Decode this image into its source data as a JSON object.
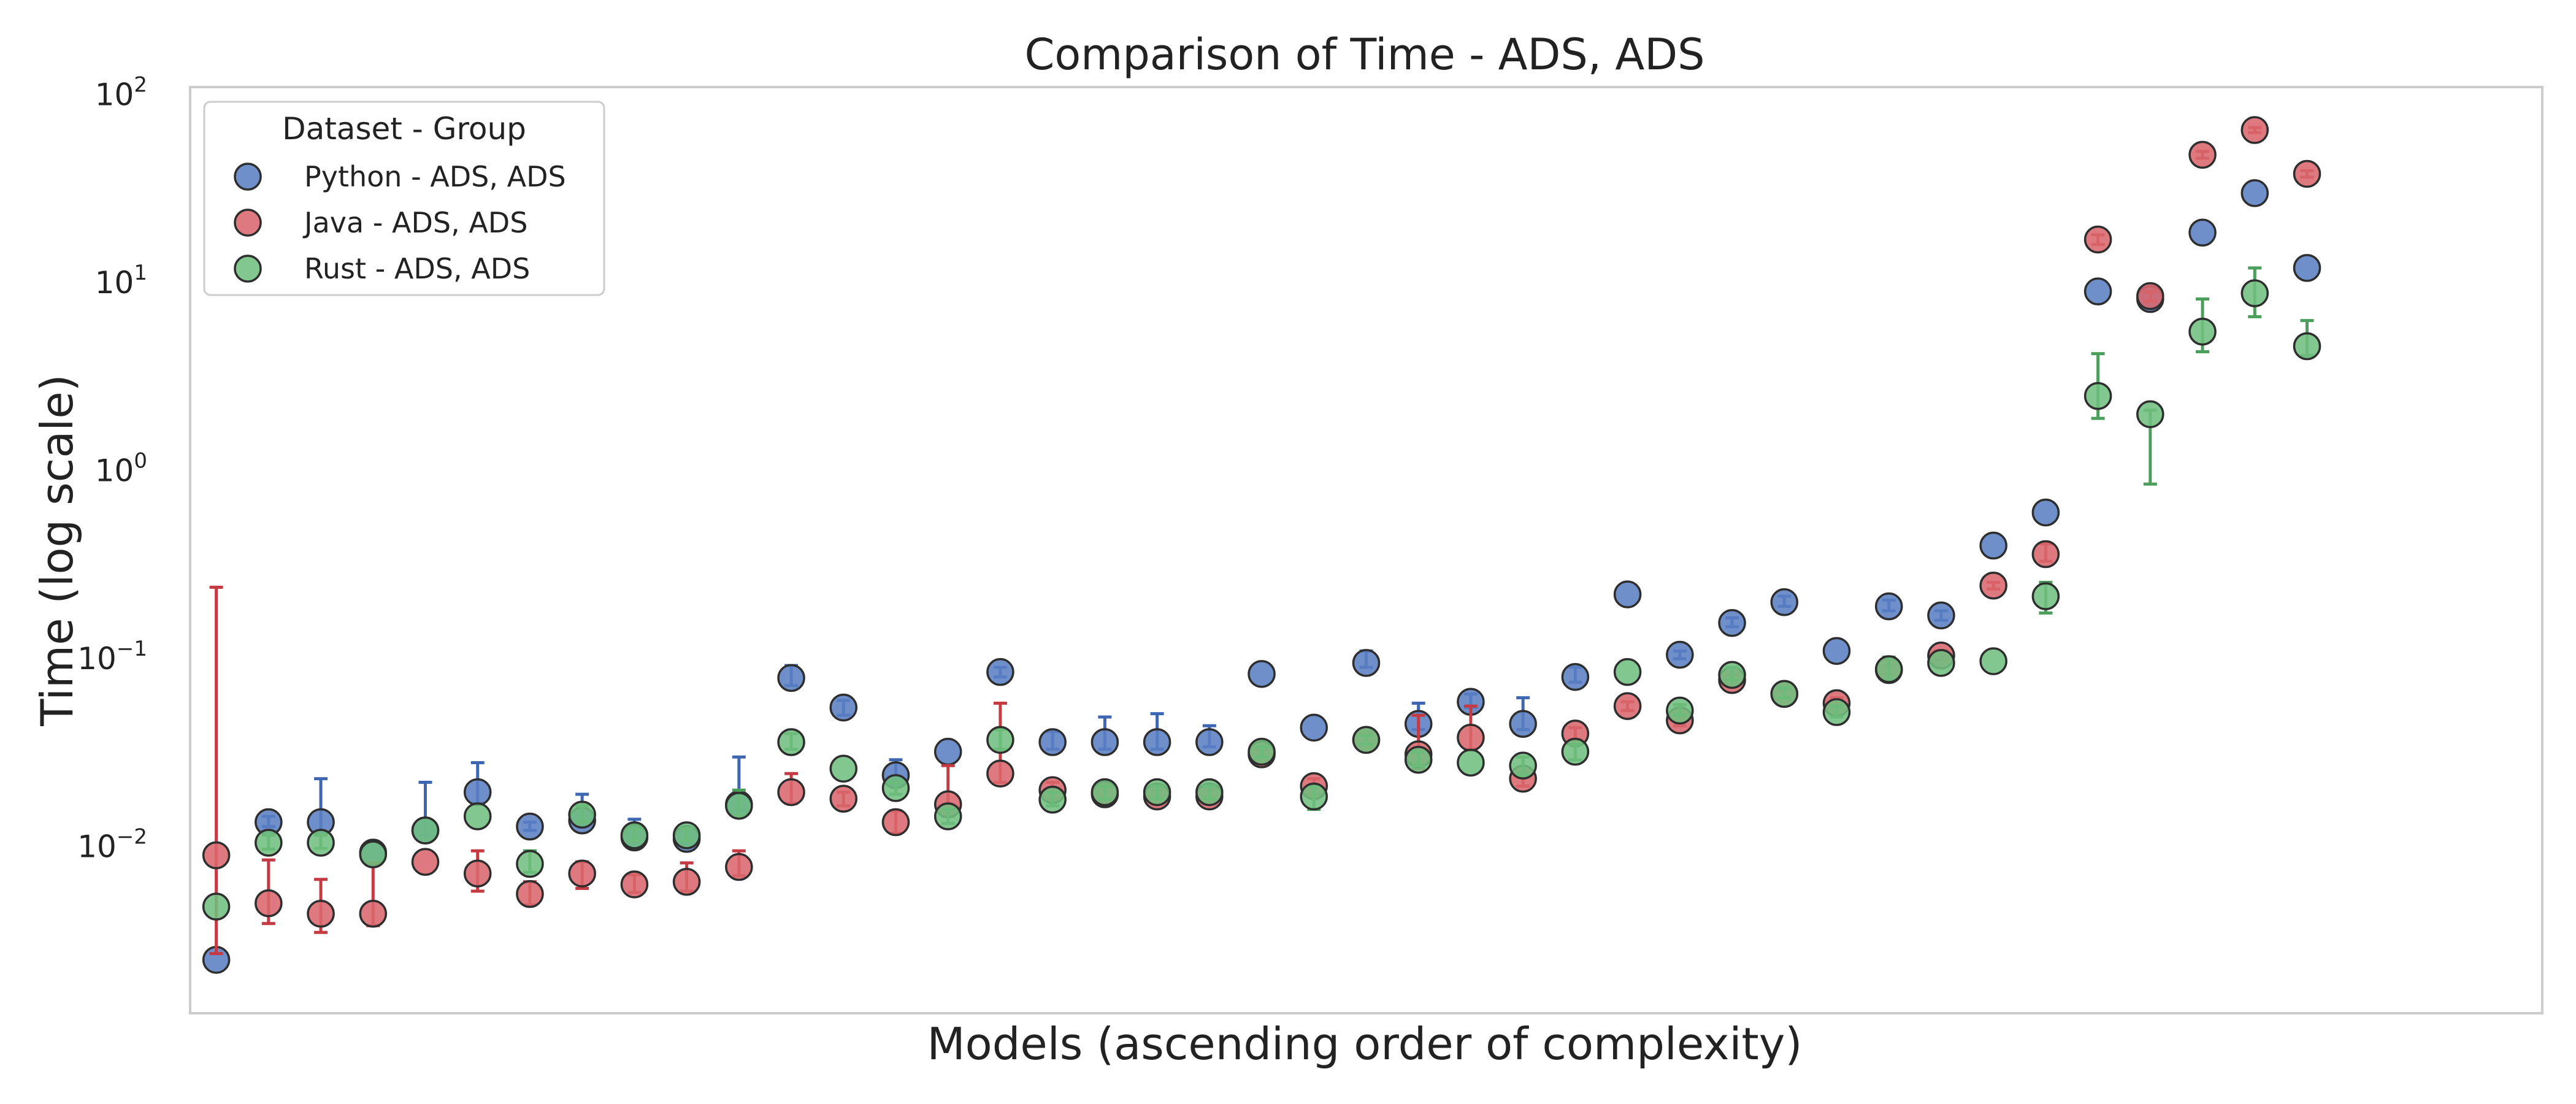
{
  "chart_data": {
    "type": "scatter",
    "title": "Comparison of Time  - ADS, ADS",
    "xlabel": "Models (ascending order of complexity)",
    "ylabel": "Time (log scale)",
    "yscale": "log",
    "ylim": [
      0.0013,
      110
    ],
    "xlim": [
      0.5,
      45.5
    ],
    "grid": false,
    "y_ticks": [
      {
        "value": 0.01,
        "base": "10",
        "exp": "−2"
      },
      {
        "value": 0.1,
        "base": "10",
        "exp": "−1"
      },
      {
        "value": 1,
        "base": "10",
        "exp": "0"
      },
      {
        "value": 10,
        "base": "10",
        "exp": "1"
      },
      {
        "value": 100,
        "base": "10",
        "exp": "2"
      }
    ],
    "legend": {
      "title": "Dataset - Group",
      "position": "top-left"
    },
    "series": [
      {
        "name": "Python - ADS, ADS",
        "color": "#5b7fc4",
        "error_color": "#3f67b1",
        "points": [
          {
            "x": 1,
            "y": 0.0025
          },
          {
            "x": 2,
            "y": 0.0135,
            "lo": 0.0128,
            "hi": 0.0145
          },
          {
            "x": 3,
            "y": 0.0135,
            "lo": 0.012,
            "hi": 0.023
          },
          {
            "x": 4,
            "y": 0.0093
          },
          {
            "x": 5,
            "y": 0.0122,
            "lo": 0.0115,
            "hi": 0.022
          },
          {
            "x": 6,
            "y": 0.0195,
            "lo": 0.017,
            "hi": 0.028
          },
          {
            "x": 7,
            "y": 0.0128,
            "lo": 0.0122,
            "hi": 0.0135
          },
          {
            "x": 8,
            "y": 0.0138,
            "lo": 0.013,
            "hi": 0.019
          },
          {
            "x": 9,
            "y": 0.0112,
            "lo": 0.0105,
            "hi": 0.014
          },
          {
            "x": 10,
            "y": 0.011,
            "lo": 0.0104,
            "hi": 0.0125
          },
          {
            "x": 11,
            "y": 0.0168,
            "lo": 0.0155,
            "hi": 0.03
          },
          {
            "x": 12,
            "y": 0.079,
            "lo": 0.072,
            "hi": 0.092
          },
          {
            "x": 13,
            "y": 0.055,
            "lo": 0.05,
            "hi": 0.06
          },
          {
            "x": 14,
            "y": 0.024,
            "lo": 0.021,
            "hi": 0.029
          },
          {
            "x": 15,
            "y": 0.032
          },
          {
            "x": 16,
            "y": 0.085,
            "lo": 0.08,
            "hi": 0.09
          },
          {
            "x": 17,
            "y": 0.036,
            "lo": 0.033,
            "hi": 0.041
          },
          {
            "x": 18,
            "y": 0.036,
            "lo": 0.033,
            "hi": 0.049
          },
          {
            "x": 19,
            "y": 0.036,
            "lo": 0.033,
            "hi": 0.051
          },
          {
            "x": 20,
            "y": 0.036,
            "lo": 0.034,
            "hi": 0.044
          },
          {
            "x": 21,
            "y": 0.083
          },
          {
            "x": 22,
            "y": 0.043
          },
          {
            "x": 23,
            "y": 0.095,
            "lo": 0.09,
            "hi": 0.11
          },
          {
            "x": 24,
            "y": 0.045,
            "lo": 0.042,
            "hi": 0.058
          },
          {
            "x": 25,
            "y": 0.059,
            "lo": 0.055,
            "hi": 0.065
          },
          {
            "x": 26,
            "y": 0.045,
            "lo": 0.042,
            "hi": 0.062
          },
          {
            "x": 27,
            "y": 0.08,
            "lo": 0.075,
            "hi": 0.09
          },
          {
            "x": 28,
            "y": 0.22
          },
          {
            "x": 29,
            "y": 0.105,
            "lo": 0.1,
            "hi": 0.11
          },
          {
            "x": 30,
            "y": 0.155,
            "lo": 0.148,
            "hi": 0.165
          },
          {
            "x": 31,
            "y": 0.2,
            "lo": 0.19,
            "hi": 0.215
          },
          {
            "x": 32,
            "y": 0.11
          },
          {
            "x": 33,
            "y": 0.19,
            "lo": 0.18,
            "hi": 0.205
          },
          {
            "x": 34,
            "y": 0.17,
            "lo": 0.16,
            "hi": 0.18
          },
          {
            "x": 35,
            "y": 0.4
          },
          {
            "x": 36,
            "y": 0.6
          },
          {
            "x": 37,
            "y": 9.0
          },
          {
            "x": 38,
            "y": 8.2
          },
          {
            "x": 39,
            "y": 18.5
          },
          {
            "x": 40,
            "y": 30.0
          },
          {
            "x": 41,
            "y": 12.0
          }
        ]
      },
      {
        "name": "Java - ADS, ADS",
        "color": "#d9686d",
        "error_color": "#c53b44",
        "points": [
          {
            "x": 1,
            "y": 0.009,
            "lo": 0.0027,
            "hi": 0.24
          },
          {
            "x": 2,
            "y": 0.005,
            "lo": 0.0039,
            "hi": 0.0085
          },
          {
            "x": 3,
            "y": 0.0044,
            "lo": 0.0035,
            "hi": 0.0067
          },
          {
            "x": 4,
            "y": 0.0044,
            "lo": 0.0038,
            "hi": 0.0082
          },
          {
            "x": 5,
            "y": 0.0083
          },
          {
            "x": 6,
            "y": 0.0072,
            "lo": 0.0058,
            "hi": 0.0095
          },
          {
            "x": 7,
            "y": 0.0056,
            "lo": 0.0049,
            "hi": 0.0065
          },
          {
            "x": 8,
            "y": 0.0072,
            "lo": 0.006,
            "hi": 0.0083
          },
          {
            "x": 9,
            "y": 0.0063,
            "lo": 0.0057,
            "hi": 0.0071
          },
          {
            "x": 10,
            "y": 0.0065,
            "lo": 0.0058,
            "hi": 0.0082
          },
          {
            "x": 11,
            "y": 0.0078,
            "lo": 0.007,
            "hi": 0.0095
          },
          {
            "x": 12,
            "y": 0.0195,
            "lo": 0.017,
            "hi": 0.0245
          },
          {
            "x": 13,
            "y": 0.018,
            "lo": 0.0165,
            "hi": 0.0195
          },
          {
            "x": 14,
            "y": 0.0135,
            "lo": 0.0118,
            "hi": 0.0155
          },
          {
            "x": 15,
            "y": 0.0168,
            "lo": 0.0145,
            "hi": 0.027
          },
          {
            "x": 16,
            "y": 0.0245,
            "lo": 0.022,
            "hi": 0.058
          },
          {
            "x": 17,
            "y": 0.02,
            "lo": 0.018,
            "hi": 0.022
          },
          {
            "x": 18,
            "y": 0.019,
            "lo": 0.0175,
            "hi": 0.021
          },
          {
            "x": 19,
            "y": 0.0185,
            "lo": 0.017,
            "hi": 0.02
          },
          {
            "x": 20,
            "y": 0.0185,
            "lo": 0.017,
            "hi": 0.02
          },
          {
            "x": 21,
            "y": 0.031,
            "lo": 0.029,
            "hi": 0.033
          },
          {
            "x": 22,
            "y": 0.021,
            "lo": 0.019,
            "hi": 0.023
          },
          {
            "x": 23,
            "y": 0.037,
            "lo": 0.035,
            "hi": 0.04
          },
          {
            "x": 24,
            "y": 0.031,
            "lo": 0.026,
            "hi": 0.05
          },
          {
            "x": 25,
            "y": 0.038,
            "lo": 0.033,
            "hi": 0.056
          },
          {
            "x": 26,
            "y": 0.023,
            "lo": 0.021,
            "hi": 0.025
          },
          {
            "x": 27,
            "y": 0.04,
            "lo": 0.037,
            "hi": 0.043
          },
          {
            "x": 28,
            "y": 0.056,
            "lo": 0.053,
            "hi": 0.059
          },
          {
            "x": 29,
            "y": 0.047,
            "lo": 0.044,
            "hi": 0.05
          },
          {
            "x": 30,
            "y": 0.077,
            "lo": 0.073,
            "hi": 0.082
          },
          {
            "x": 31,
            "y": 0.065,
            "lo": 0.062,
            "hi": 0.068
          },
          {
            "x": 32,
            "y": 0.058,
            "lo": 0.055,
            "hi": 0.062
          },
          {
            "x": 33,
            "y": 0.087,
            "lo": 0.083,
            "hi": 0.092
          },
          {
            "x": 34,
            "y": 0.104,
            "lo": 0.098,
            "hi": 0.11
          },
          {
            "x": 35,
            "y": 0.245,
            "lo": 0.235,
            "hi": 0.255
          },
          {
            "x": 36,
            "y": 0.36,
            "lo": 0.33,
            "hi": 0.41
          },
          {
            "x": 37,
            "y": 17.0,
            "lo": 16.0,
            "hi": 18.0
          },
          {
            "x": 38,
            "y": 8.5,
            "lo": 8.0,
            "hi": 9.0
          },
          {
            "x": 39,
            "y": 48.0,
            "lo": 46.0,
            "hi": 50.0
          },
          {
            "x": 40,
            "y": 65.0,
            "lo": 63.0,
            "hi": 67.0
          },
          {
            "x": 41,
            "y": 38.0,
            "lo": 36.5,
            "hi": 39.5
          }
        ]
      },
      {
        "name": "Rust - ADS, ADS",
        "color": "#6fbf7f",
        "error_color": "#4c9e5c",
        "points": [
          {
            "x": 1,
            "y": 0.0048
          },
          {
            "x": 2,
            "y": 0.0105,
            "lo": 0.0097,
            "hi": 0.0115
          },
          {
            "x": 3,
            "y": 0.0105,
            "lo": 0.0098,
            "hi": 0.0115
          },
          {
            "x": 4,
            "y": 0.0091
          },
          {
            "x": 5,
            "y": 0.0122
          },
          {
            "x": 6,
            "y": 0.0145
          },
          {
            "x": 7,
            "y": 0.0081,
            "lo": 0.0073,
            "hi": 0.0095
          },
          {
            "x": 8,
            "y": 0.0148,
            "lo": 0.0135,
            "hi": 0.0165
          },
          {
            "x": 9,
            "y": 0.0115,
            "lo": 0.0108,
            "hi": 0.0125
          },
          {
            "x": 10,
            "y": 0.0115,
            "lo": 0.0108,
            "hi": 0.0125
          },
          {
            "x": 11,
            "y": 0.0165,
            "lo": 0.0145,
            "hi": 0.02
          },
          {
            "x": 12,
            "y": 0.036,
            "lo": 0.033,
            "hi": 0.04
          },
          {
            "x": 13,
            "y": 0.026
          },
          {
            "x": 14,
            "y": 0.0205,
            "lo": 0.019,
            "hi": 0.022
          },
          {
            "x": 15,
            "y": 0.0145,
            "lo": 0.0133,
            "hi": 0.0158
          },
          {
            "x": 16,
            "y": 0.037,
            "lo": 0.033,
            "hi": 0.042
          },
          {
            "x": 17,
            "y": 0.0178,
            "lo": 0.0165,
            "hi": 0.0195
          },
          {
            "x": 18,
            "y": 0.0195,
            "lo": 0.018,
            "hi": 0.021
          },
          {
            "x": 19,
            "y": 0.0195,
            "lo": 0.018,
            "hi": 0.021
          },
          {
            "x": 20,
            "y": 0.0195,
            "lo": 0.018,
            "hi": 0.021
          },
          {
            "x": 21,
            "y": 0.032,
            "lo": 0.03,
            "hi": 0.034
          },
          {
            "x": 22,
            "y": 0.0185,
            "lo": 0.0158,
            "hi": 0.021
          },
          {
            "x": 23,
            "y": 0.037,
            "lo": 0.035,
            "hi": 0.039
          },
          {
            "x": 24,
            "y": 0.029,
            "lo": 0.027,
            "hi": 0.032
          },
          {
            "x": 25,
            "y": 0.028
          },
          {
            "x": 26,
            "y": 0.027,
            "lo": 0.024,
            "hi": 0.03
          },
          {
            "x": 27,
            "y": 0.032,
            "lo": 0.029,
            "hi": 0.035
          },
          {
            "x": 28,
            "y": 0.085
          },
          {
            "x": 29,
            "y": 0.053,
            "lo": 0.05,
            "hi": 0.057
          },
          {
            "x": 30,
            "y": 0.082,
            "lo": 0.077,
            "hi": 0.09
          },
          {
            "x": 31,
            "y": 0.065,
            "lo": 0.062,
            "hi": 0.07
          },
          {
            "x": 32,
            "y": 0.052,
            "lo": 0.049,
            "hi": 0.056
          },
          {
            "x": 33,
            "y": 0.088,
            "lo": 0.077,
            "hi": 0.102
          },
          {
            "x": 34,
            "y": 0.095
          },
          {
            "x": 35,
            "y": 0.097
          },
          {
            "x": 36,
            "y": 0.215,
            "lo": 0.175,
            "hi": 0.255
          },
          {
            "x": 37,
            "y": 2.5,
            "lo": 1.9,
            "hi": 4.2
          },
          {
            "x": 38,
            "y": 2.0,
            "lo": 0.85,
            "hi": 2.1
          },
          {
            "x": 39,
            "y": 5.5,
            "lo": 4.3,
            "hi": 8.2
          },
          {
            "x": 40,
            "y": 8.8,
            "lo": 6.6,
            "hi": 12.0
          },
          {
            "x": 41,
            "y": 4.6,
            "lo": 4.1,
            "hi": 6.3
          }
        ]
      }
    ]
  }
}
